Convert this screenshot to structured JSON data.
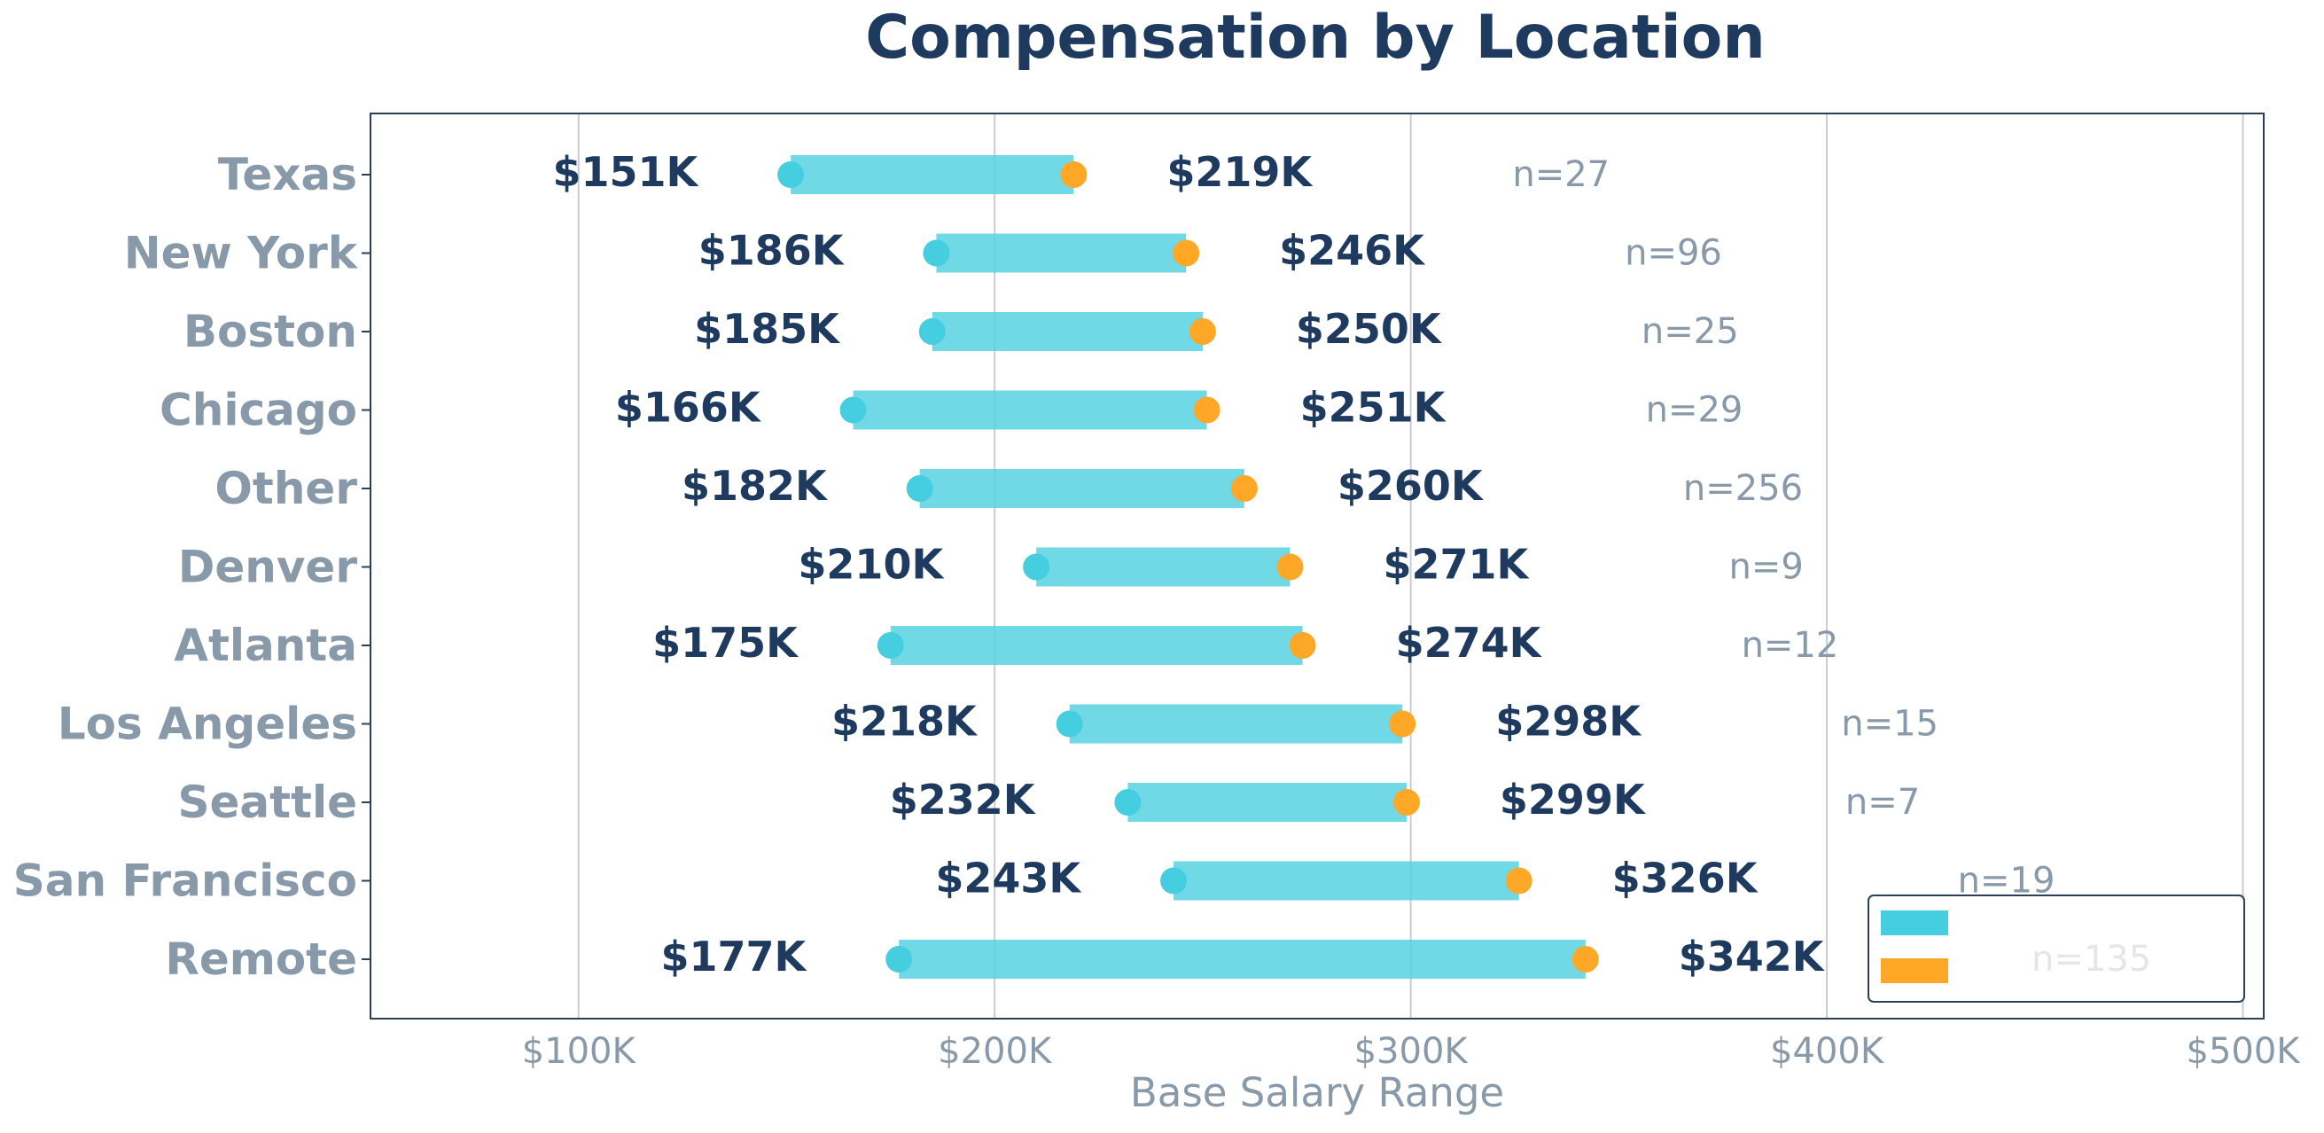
{
  "colors": {
    "title": "#1e3a5f",
    "category_label": "#8899aa",
    "value_label": "#1e3a5f",
    "n_label": "#8899aa",
    "tick_label": "#8899aa",
    "axis_title": "#8899aa",
    "range_bar": "#4ecfe0",
    "min_marker": "#45cde0",
    "max_marker": "#ffa726",
    "grid": "#c9cdd2",
    "frame": "#2b3f57",
    "legend_border": "#2b3f57",
    "legend_text": "#e6e6e6"
  },
  "chart_data": {
    "type": "range-dot",
    "title": "Compensation by Location",
    "xlabel": "Base Salary Range",
    "ylabel": "",
    "xlim": [
      50000,
      505000
    ],
    "xticks": [
      100000,
      200000,
      300000,
      400000,
      500000
    ],
    "xtick_labels": [
      "$100K",
      "$200K",
      "$300K",
      "$400K",
      "$500K"
    ],
    "grid": "vertical",
    "legend_placement": "bottom-right",
    "legend_overlapped_label": "n=135",
    "categories": [
      "Texas",
      "New York",
      "Boston",
      "Chicago",
      "Other",
      "Denver",
      "Atlanta",
      "Los Angeles",
      "Seattle",
      "San Francisco",
      "Remote"
    ],
    "series": [
      {
        "values": [
          151000,
          186000,
          185000,
          166000,
          182000,
          210000,
          175000,
          218000,
          232000,
          243000,
          177000
        ]
      },
      {
        "values": [
          219000,
          246000,
          250000,
          251000,
          260000,
          271000,
          274000,
          298000,
          299000,
          326000,
          342000
        ]
      }
    ],
    "min_labels": [
      "$151K",
      "$186K",
      "$185K",
      "$166K",
      "$182K",
      "$210K",
      "$175K",
      "$218K",
      "$232K",
      "$243K",
      "$177K"
    ],
    "max_labels": [
      "$219K",
      "$246K",
      "$250K",
      "$251K",
      "$260K",
      "$271K",
      "$274K",
      "$298K",
      "$299K",
      "$326K",
      "$342K"
    ],
    "counts": [
      27,
      96,
      25,
      29,
      256,
      9,
      12,
      15,
      7,
      19,
      135
    ],
    "count_labels": [
      "n=27",
      "n=96",
      "n=25",
      "n=29",
      "n=256",
      "n=9",
      "n=12",
      "n=15",
      "n=7",
      "n=19",
      "n=135"
    ]
  }
}
